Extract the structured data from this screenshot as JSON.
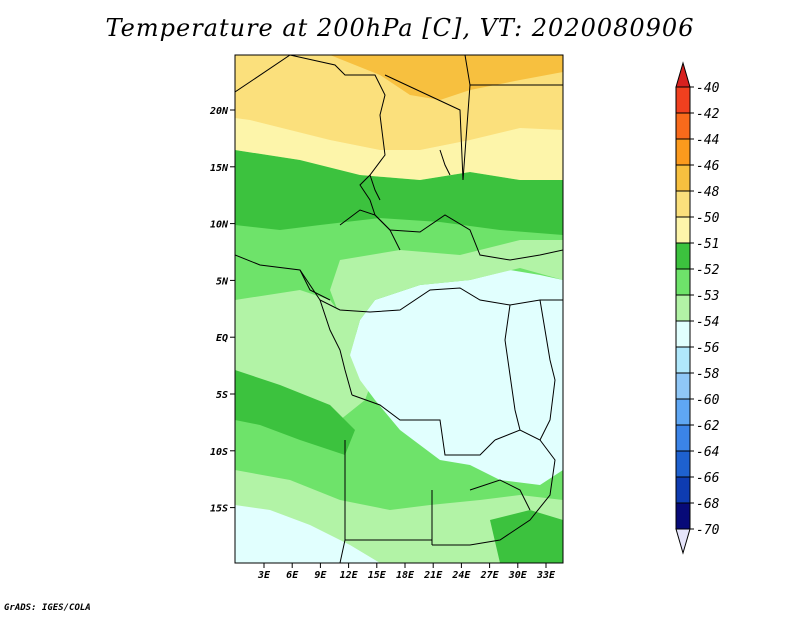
{
  "title": "Temperature at 200hPa [C], VT: 2020080906",
  "credit": "GrADS: IGES/COLA",
  "lat_labels": [
    "20N",
    "15N",
    "10N",
    "5N",
    "EQ",
    "5S",
    "10S",
    "15S"
  ],
  "lon_labels": [
    "3E",
    "6E",
    "9E",
    "12E",
    "15E",
    "18E",
    "21E",
    "24E",
    "27E",
    "30E",
    "33E"
  ],
  "colorbar": {
    "labels": [
      "-40",
      "-42",
      "-44",
      "-46",
      "-48",
      "-50",
      "-51",
      "-52",
      "-53",
      "-54",
      "-56",
      "-58",
      "-60",
      "-62",
      "-64",
      "-66",
      "-68",
      "-70"
    ],
    "colors": [
      "#d7211f",
      "#f0401f",
      "#f86a1b",
      "#fb9a1d",
      "#f7c03f",
      "#fbe07c",
      "#fdf5aa",
      "#3cc23e",
      "#6ee36a",
      "#b2f3a6",
      "#e1fffe",
      "#b0e8fc",
      "#8fc7f7",
      "#5fa7f4",
      "#3b84e8",
      "#1e61cf",
      "#0e3cb1",
      "#070a78"
    ],
    "top_color": "#d7211f",
    "bottom_color": "#e6e5fb"
  }
}
